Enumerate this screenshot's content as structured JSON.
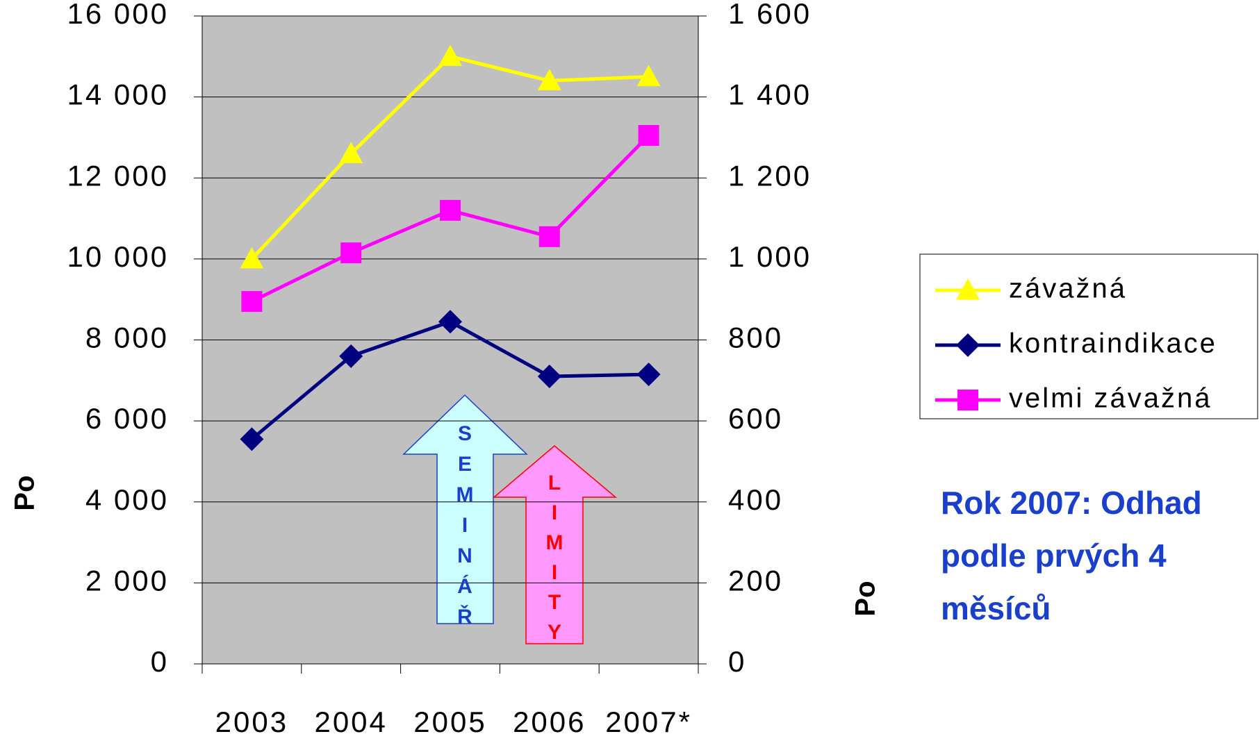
{
  "chart_data": {
    "type": "line",
    "categories": [
      "2003",
      "2004",
      "2005",
      "2006",
      "2007*"
    ],
    "series": [
      {
        "name": "závažná",
        "color": "#ffff00",
        "marker": "triangle",
        "values": [
          10000,
          12600,
          15000,
          14400,
          14500
        ]
      },
      {
        "name": "kontraindikace",
        "color": "#000080",
        "marker": "diamond",
        "values": [
          5550,
          7600,
          8450,
          7100,
          7150
        ]
      },
      {
        "name": "velmi závažná",
        "color": "#ff00ff",
        "marker": "square",
        "axis": "y2",
        "values": [
          895,
          1015,
          1120,
          1055,
          1305
        ]
      }
    ],
    "ylabel": "Po",
    "y2label": "Po",
    "ylim": [
      0,
      16000
    ],
    "yticks": [
      0,
      {
        "value": 2000,
        "label": "2 000"
      },
      {
        "value": 4000,
        "label": "4 000"
      },
      {
        "value": 6000,
        "label": "6 000"
      },
      {
        "value": 8000,
        "label": "8 000"
      },
      {
        "value": 10000,
        "label": "10 000"
      },
      {
        "value": 12000,
        "label": "12 000"
      },
      {
        "value": 14000,
        "label": "14 000"
      },
      {
        "value": 16000,
        "label": "16 000"
      }
    ],
    "y2lim": [
      0,
      1600
    ],
    "y2ticks": [
      0,
      200,
      400,
      600,
      800,
      {
        "value": 1000,
        "label": "1 000"
      },
      {
        "value": 1200,
        "label": "1 200"
      },
      {
        "value": 1400,
        "label": "1 400"
      },
      {
        "value": 1600,
        "label": "1 600"
      }
    ],
    "grid": true,
    "legend": "right",
    "annotations": {
      "note": [
        "Rok 2007: Odhad",
        "podle prvých 4",
        "měsíců"
      ],
      "seminar": [
        "S",
        "E",
        "M",
        "I",
        "N",
        "Á",
        "Ř"
      ],
      "limity": [
        "L",
        "I",
        "M",
        "I",
        "T",
        "Y"
      ]
    }
  }
}
